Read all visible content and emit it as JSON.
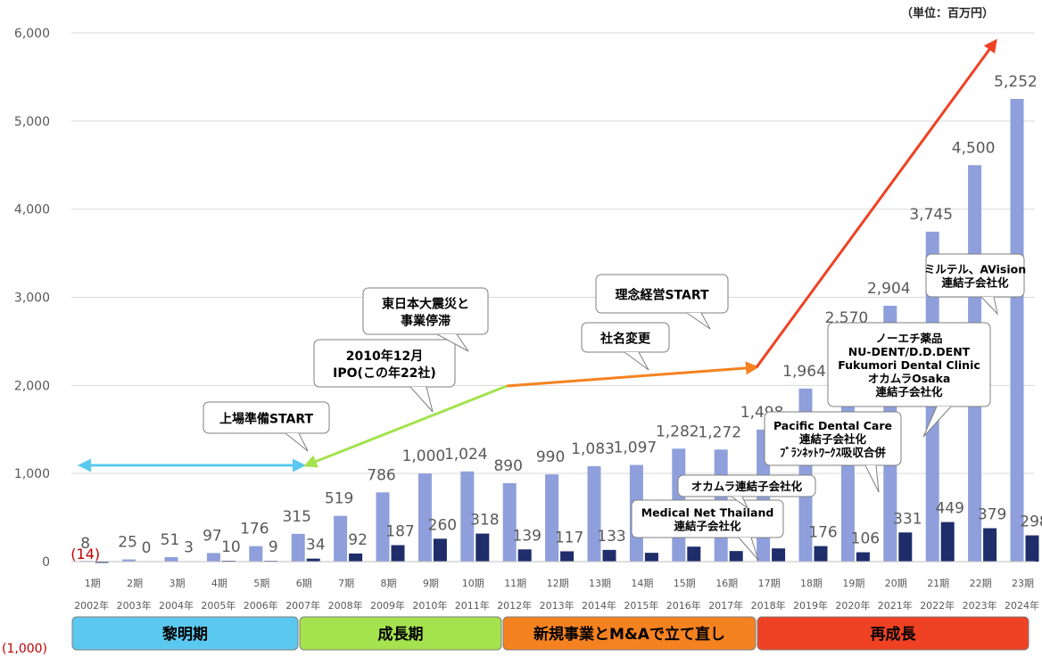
{
  "unit_label": "（単位：百万円）",
  "negative_axis_label": "(1,000)",
  "chart_data": {
    "type": "bar",
    "ylim": [
      -1000,
      6000
    ],
    "yticks": [
      "0",
      "1,000",
      "2,000",
      "3,000",
      "4,000",
      "5,000",
      "6,000"
    ],
    "categories": [
      "1期",
      "2期",
      "3期",
      "4期",
      "5期",
      "6期",
      "7期",
      "8期",
      "9期",
      "10期",
      "11期",
      "12期",
      "13期",
      "14期",
      "15期",
      "16期",
      "17期",
      "18期",
      "19期",
      "20期",
      "21期",
      "22期",
      "23期"
    ],
    "years": [
      "2002年",
      "2003年",
      "2004年",
      "2005年",
      "2006年",
      "2007年",
      "2008年",
      "2009年",
      "2010年",
      "2011年",
      "2012年",
      "2013年",
      "2014年",
      "2015年",
      "2016年",
      "2017年",
      "2018年",
      "2019年",
      "2020年",
      "2021年",
      "2022年",
      "2023年",
      "2024年"
    ],
    "series": [
      {
        "values": [
          8,
          25,
          51,
          97,
          176,
          315,
          519,
          786,
          1000,
          1024,
          890,
          990,
          1083,
          1097,
          1282,
          1272,
          1498,
          1964,
          2570,
          2904,
          3745,
          4500,
          5252
        ],
        "labels": [
          "8",
          "25",
          "51",
          "97",
          "176",
          "315",
          "519",
          "786",
          "1,000",
          "1,024",
          "890",
          "990",
          "1,083",
          "1,097",
          "1,282",
          "1,272",
          "1,498",
          "1,964",
          "2,570",
          "2,904",
          "3,745",
          "4,500",
          "5,252"
        ],
        "color": "#8e9fdb"
      },
      {
        "values": [
          -14,
          0,
          3,
          10,
          9,
          34,
          92,
          187,
          260,
          318,
          139,
          117,
          133,
          100,
          170,
          120,
          150,
          176,
          106,
          331,
          449,
          379,
          298
        ],
        "labels": [
          "(14)",
          "0",
          "3",
          "10",
          "9",
          "34",
          "92",
          "187",
          "260",
          "318",
          "139",
          "117",
          "133",
          "",
          "",
          "",
          "",
          "176",
          "106",
          "331",
          "449",
          "379",
          "298"
        ],
        "color": "#1f2d6b"
      }
    ]
  },
  "phases": [
    {
      "label": "黎明期",
      "color": "#5bc8ef"
    },
    {
      "label": "成長期",
      "color": "#a4e24e"
    },
    {
      "label": "新規事業とM&Aで立て直し",
      "color": "#f58220"
    },
    {
      "label": "再成長",
      "color": "#ef4123"
    }
  ],
  "arrow_colors": {
    "cyan": "#5bc8ef",
    "green": "#a4e24e",
    "orange": "#f58220",
    "red": "#ef4123"
  },
  "callouts": [
    {
      "lines": [
        "上場準備START"
      ]
    },
    {
      "lines": [
        "2010年12月",
        "IPO(この年22社)"
      ]
    },
    {
      "lines": [
        "東日本大震災と",
        "事業停滞"
      ]
    },
    {
      "lines": [
        "社名変更"
      ]
    },
    {
      "lines": [
        "理念経営START"
      ]
    },
    {
      "lines": [
        "Medical Net Thailand",
        "連結子会社化"
      ]
    },
    {
      "lines": [
        "オカムラ連結子会社化"
      ]
    },
    {
      "lines": [
        "Pacific Dental Care",
        "連結子会社化",
        "ﾌﾞﾗﾝﾈｯﾄﾜｰｸｽ吸収合併"
      ]
    },
    {
      "lines": [
        "ノーエチ薬品",
        "NU-DENT/D.D.DENT",
        "Fukumori Dental Clinic",
        "オカムラOsaka",
        "連結子会社化"
      ]
    },
    {
      "lines": [
        "ミルテル、AVision",
        "連結子会社化"
      ]
    }
  ]
}
